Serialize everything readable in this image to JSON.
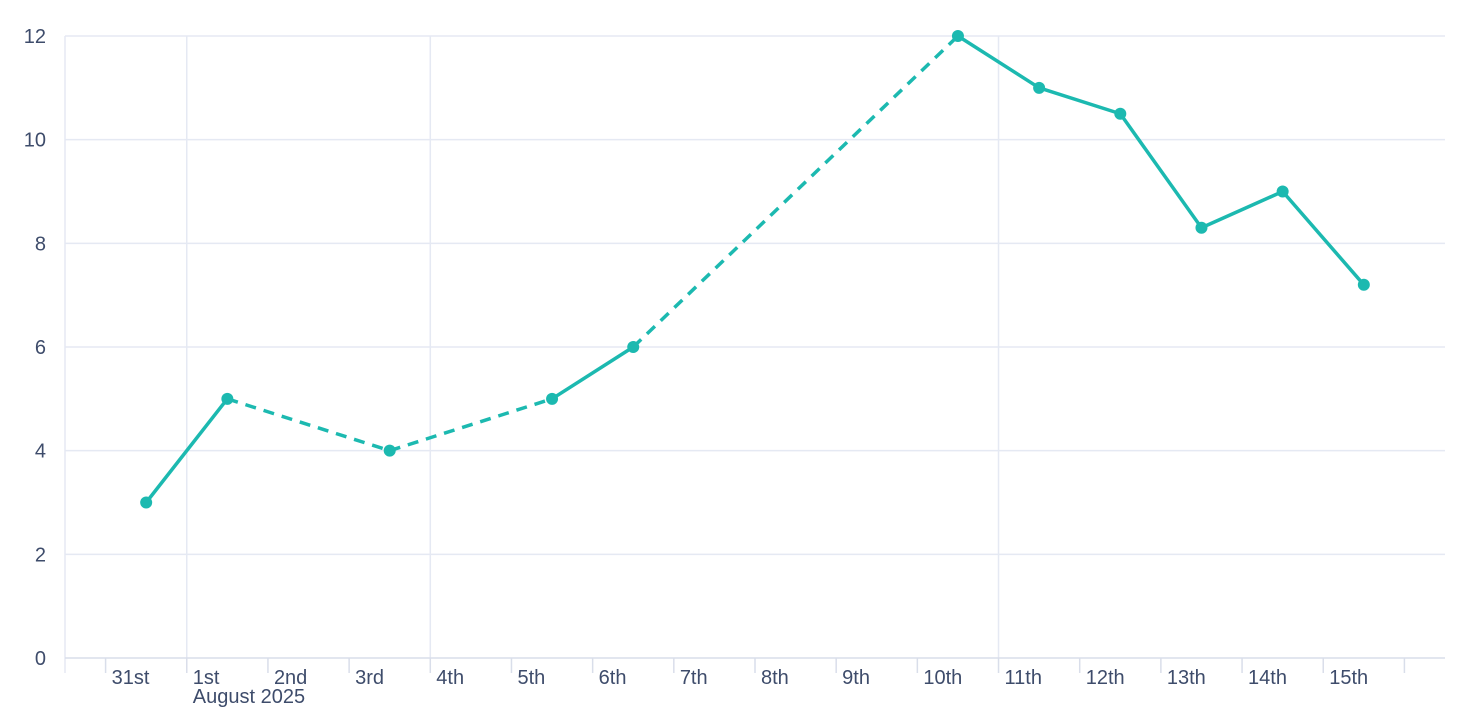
{
  "chart": {
    "background": "#ffffff",
    "colors": {
      "line": "#1cb9b0",
      "marker": "#1cb9b0",
      "grid": "#e5e9f3",
      "axis": "#d9deea",
      "label": "#3e4c6b"
    }
  },
  "chart_data": {
    "type": "line",
    "title": "",
    "xlabel": "",
    "ylabel": "",
    "categories": [
      "31st",
      "1st",
      "2nd",
      "3rd",
      "4th",
      "5th",
      "6th",
      "7th",
      "8th",
      "9th",
      "10th",
      "11th",
      "12th",
      "13th",
      "14th",
      "15th"
    ],
    "values": [
      3,
      5,
      null,
      4,
      null,
      5,
      6,
      null,
      null,
      null,
      12,
      11,
      10.5,
      8.3,
      9,
      7.2
    ],
    "gap_segment_style": "dashed",
    "solid_segment_style": "solid",
    "markers": true,
    "month_label": "August 2025",
    "month_label_at_category": "1st",
    "y_ticks": [
      0,
      2,
      4,
      6,
      8,
      10,
      12
    ],
    "ylim": [
      0,
      12
    ],
    "legend": "none",
    "grid": {
      "horizontal": true,
      "vertical_at_categories": [
        "1st",
        "4th",
        "11th"
      ],
      "left_border": true
    }
  }
}
